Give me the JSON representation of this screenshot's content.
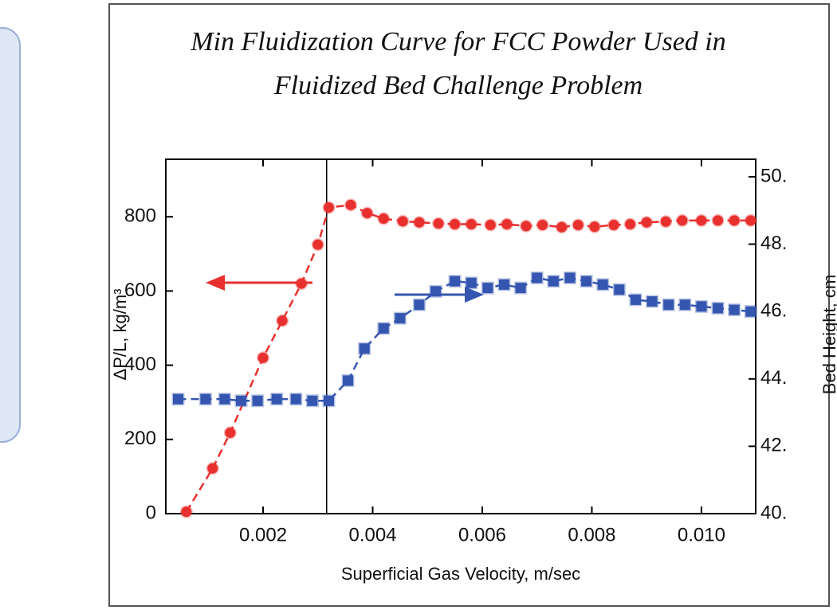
{
  "chart_data": {
    "type": "scatter",
    "title": [
      "Min Fluidization Curve for FCC Powder Used in",
      "Fluidized Bed Challenge Problem"
    ],
    "xlabel": "Superficial Gas Velocity, m/sec",
    "ylabel": "ΔP/L, kg/m³",
    "y2label": "Bed Height, cm",
    "xlim": [
      0.000225,
      0.01099
    ],
    "xticks": [
      0.002,
      0.004,
      0.006,
      0.008,
      {
        "value": 0.01,
        "label": "0.010"
      }
    ],
    "ylim": [
      0,
      955
    ],
    "yticks": [
      0,
      200,
      400,
      600,
      800
    ],
    "y2lim": [
      40,
      50.52
    ],
    "y2ticks": [
      {
        "value": 40,
        "label": "40."
      },
      {
        "value": 42,
        "label": "42."
      },
      {
        "value": 44,
        "label": "44."
      },
      {
        "value": 46,
        "label": "46."
      },
      {
        "value": 48,
        "label": "48."
      },
      {
        "value": 50,
        "label": "50."
      }
    ],
    "vline_x": 0.00316,
    "series": [
      {
        "color": "#e8302e",
        "marker": "circle",
        "x": [
          0.0006,
          0.00108,
          0.0014,
          0.002,
          0.00235,
          0.0027,
          0.003,
          0.0032,
          0.0036,
          0.0039,
          0.0042,
          0.00455,
          0.00485,
          0.0052,
          0.0055,
          0.0058,
          0.00615,
          0.00645,
          0.0068,
          0.0071,
          0.00745,
          0.00775,
          0.00805,
          0.0084,
          0.0087,
          0.009,
          0.00935,
          0.00965,
          0.01,
          0.0103,
          0.0106,
          0.0109
        ],
        "values": [
          5,
          122,
          218,
          420,
          520,
          620,
          725,
          825,
          832,
          810,
          795,
          788,
          785,
          782,
          780,
          780,
          778,
          780,
          775,
          778,
          772,
          778,
          773,
          778,
          780,
          785,
          787,
          790,
          790,
          790,
          790,
          790
        ]
      },
      {
        "color": "#3556b0",
        "marker": "square",
        "axis": "y2",
        "x": [
          0.00045,
          0.00095,
          0.0013,
          0.0016,
          0.0019,
          0.00225,
          0.0026,
          0.0029,
          0.0032,
          0.00355,
          0.00385,
          0.0042,
          0.0045,
          0.00485,
          0.00515,
          0.0055,
          0.0058,
          0.0061,
          0.0064,
          0.0067,
          0.007,
          0.0073,
          0.0076,
          0.0079,
          0.0082,
          0.0085,
          0.0088,
          0.0091,
          0.0094,
          0.0097,
          0.01,
          0.0103,
          0.0106,
          0.0109
        ],
        "values": [
          43.4,
          43.4,
          43.4,
          43.35,
          43.35,
          43.4,
          43.4,
          43.35,
          43.35,
          43.95,
          44.9,
          45.5,
          45.8,
          46.2,
          46.6,
          46.9,
          46.85,
          46.7,
          46.8,
          46.7,
          47.0,
          46.9,
          47.0,
          46.9,
          46.8,
          46.65,
          46.35,
          46.3,
          46.2,
          46.2,
          46.15,
          46.1,
          46.05,
          46.0
        ]
      }
    ]
  }
}
